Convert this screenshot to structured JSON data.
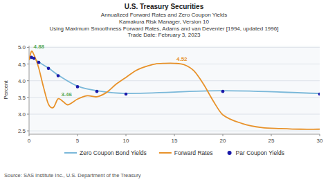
{
  "chart_data": {
    "type": "line",
    "title": "U.S. Treasury Securities",
    "subtitle": [
      "Annualized Forward Rates and Zero Coupon Yields",
      "Kamakura Risk Manager, Version 10",
      "Using Maximum Smoothness Forward Rates, Adams and van Deventer [1994, updated 1996]",
      "Trade Date:   February 3, 2023"
    ],
    "source": "Source: SAS Institute Inc., U.S. Department of the Treasury",
    "y_label": "Percent",
    "xlim": [
      0,
      30
    ],
    "ylim": [
      2.4,
      5.05
    ],
    "yticks": [
      2.5,
      {
        "value": 3.0,
        "label": "3.0"
      },
      3.5,
      {
        "value": 4.0,
        "label": "4.0"
      },
      4.5,
      {
        "value": 5.0,
        "label": "5.0"
      }
    ],
    "xticks": [
      0,
      5,
      10,
      15,
      20,
      25,
      30
    ],
    "grid": true,
    "legend": "bottom",
    "series": [
      {
        "name": "Zero Coupon Bond Yields",
        "type": "line",
        "color": "#7ab8d9",
        "x": [
          0.0,
          0.25,
          0.5,
          1.0,
          2.0,
          3.0,
          5.0,
          7.0,
          10.0,
          20.0,
          30.0
        ],
        "values": [
          4.62,
          4.7,
          4.67,
          4.56,
          4.38,
          4.17,
          3.84,
          3.7,
          3.62,
          3.7,
          3.62
        ]
      },
      {
        "name": "Forward Rates",
        "type": "line",
        "color": "#e8922a",
        "x": [
          0.0,
          0.25,
          0.5,
          0.75,
          1.0,
          1.5,
          2.0,
          2.5,
          3.0,
          3.5,
          4.0,
          5.0,
          6.0,
          7.0,
          8.0,
          9.0,
          10.0,
          11.0,
          12.0,
          13.0,
          14.0,
          15.0,
          16.0,
          17.0,
          18.0,
          19.0,
          20.0,
          22.0,
          24.0,
          26.0,
          28.0,
          30.0
        ],
        "values": [
          4.62,
          4.88,
          4.78,
          4.6,
          4.38,
          3.8,
          3.3,
          3.2,
          3.46,
          3.38,
          3.28,
          3.45,
          3.55,
          3.52,
          3.65,
          3.9,
          4.1,
          4.3,
          4.42,
          4.5,
          4.52,
          4.52,
          4.48,
          4.3,
          3.9,
          3.4,
          2.98,
          2.72,
          2.6,
          2.57,
          2.55,
          2.55
        ]
      },
      {
        "name": "Par Coupon Yields",
        "type": "scatter",
        "marker": "circle",
        "color": "#1a1aaa",
        "x": [
          0.25,
          0.5,
          1.0,
          2.0,
          3.0,
          5.0,
          7.0,
          10.0,
          20.0,
          30.0
        ],
        "values": [
          4.7,
          4.67,
          4.55,
          4.37,
          4.15,
          3.82,
          3.68,
          3.6,
          3.68,
          3.6
        ]
      }
    ],
    "annotations": [
      {
        "text": "4.88",
        "x": 0.25,
        "y": 4.88,
        "color": "#5aaa5a"
      },
      {
        "text": "3.46",
        "x": 3.1,
        "y": 3.46,
        "color": "#5aaa5a"
      },
      {
        "text": "4.52",
        "x": 15.0,
        "y": 4.52,
        "color": "#e8922a"
      }
    ]
  }
}
